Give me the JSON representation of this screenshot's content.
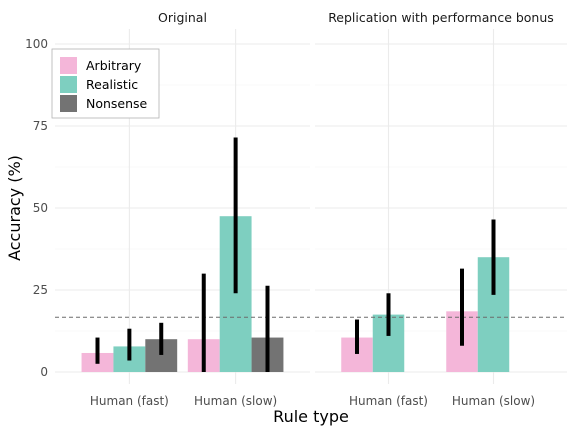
{
  "chart_data": {
    "type": "bar",
    "xlabel": "Rule type",
    "ylabel": "Accuracy (%)",
    "ylim": [
      0,
      100
    ],
    "yticks": [
      0,
      25,
      50,
      75,
      100
    ],
    "reference_line": 16.7,
    "grid": true,
    "legend_placement": "top-left",
    "legend": [
      {
        "label": "Arbitrary",
        "color": "#f4b6d9"
      },
      {
        "label": "Realistic",
        "color": "#7ecfc0"
      },
      {
        "label": "Nonsense",
        "color": "#737373"
      }
    ],
    "panels": [
      {
        "title": "Original",
        "categories": [
          "Human (fast)",
          "Human (slow)"
        ],
        "series": [
          {
            "name": "Arbitrary",
            "values": [
              5.8,
              10.0
            ],
            "lower": [
              2.5,
              0.0
            ],
            "upper": [
              10.5,
              30.0
            ]
          },
          {
            "name": "Realistic",
            "values": [
              7.8,
              47.5
            ],
            "lower": [
              3.5,
              24.0
            ],
            "upper": [
              13.2,
              71.5
            ]
          },
          {
            "name": "Nonsense",
            "values": [
              10.0,
              10.5
            ],
            "lower": [
              5.2,
              0.0
            ],
            "upper": [
              15.0,
              26.3
            ]
          }
        ]
      },
      {
        "title": "Replication with performance bonus",
        "categories": [
          "Human (fast)",
          "Human (slow)"
        ],
        "series": [
          {
            "name": "Arbitrary",
            "values": [
              10.5,
              18.5
            ],
            "lower": [
              5.5,
              8.0
            ],
            "upper": [
              16.0,
              31.5
            ]
          },
          {
            "name": "Realistic",
            "values": [
              17.5,
              35.0
            ],
            "lower": [
              11.0,
              23.5
            ],
            "upper": [
              24.0,
              46.5
            ]
          }
        ]
      }
    ]
  }
}
